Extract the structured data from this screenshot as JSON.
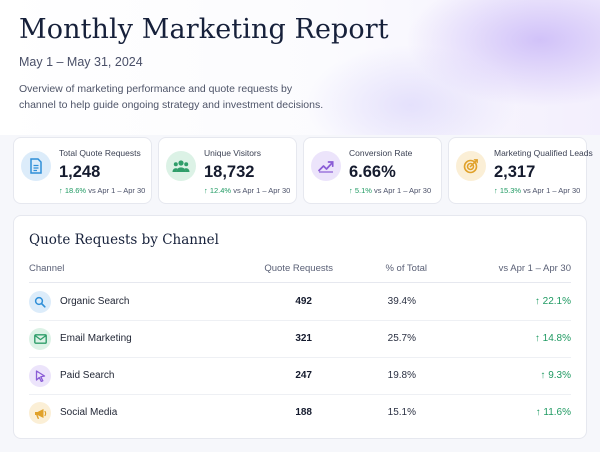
{
  "header": {
    "title": "Monthly Marketing Report",
    "date_range": "May 1 – May 31, 2024",
    "description": "Overview of marketing performance and quote requests by channel to help guide ongoing strategy and investment decisions."
  },
  "kpis": [
    {
      "label": "Total Quote Requests",
      "value": "1,248",
      "change": "↑ 18.6%",
      "comparison": "vs Apr 1 – Apr 30",
      "icon": "document-icon",
      "color": "#2f8fd8"
    },
    {
      "label": "Unique Visitors",
      "value": "18,732",
      "change": "↑ 12.4%",
      "comparison": "vs Apr 1 – Apr 30",
      "icon": "users-icon",
      "color": "#2f9e6a"
    },
    {
      "label": "Conversion Rate",
      "value": "6.66%",
      "change": "↑ 5.1%",
      "comparison": "vs Apr 1 – Apr 30",
      "icon": "trend-up-icon",
      "color": "#8a5cd6"
    },
    {
      "label": "Marketing Qualified Leads",
      "value": "2,317",
      "change": "↑ 15.3%",
      "comparison": "vs Apr 1 – Apr 30",
      "icon": "target-icon",
      "color": "#e0a12a"
    }
  ],
  "channels": {
    "title": "Quote Requests by Channel",
    "columns": [
      "Channel",
      "Quote Requests",
      "% of Total",
      "vs Apr 1 – Apr 30"
    ],
    "rows": [
      {
        "channel": "Organic Search",
        "requests": "492",
        "share": "39.4%",
        "change": "↑  22.1%",
        "icon": "search-icon",
        "color": "#2f8fd8"
      },
      {
        "channel": "Email Marketing",
        "requests": "321",
        "share": "25.7%",
        "change": "↑  14.8%",
        "icon": "mail-icon",
        "color": "#2f9e6a"
      },
      {
        "channel": "Paid Search",
        "requests": "247",
        "share": "19.8%",
        "change": "↑  9.3%",
        "icon": "cursor-icon",
        "color": "#8a5cd6"
      },
      {
        "channel": "Social Media",
        "requests": "188",
        "share": "15.1%",
        "change": "↑  11.6%",
        "icon": "megaphone-icon",
        "color": "#e0a12a"
      }
    ]
  },
  "colors": {
    "accent_positive": "#1f9a62",
    "heading": "#16203a"
  }
}
